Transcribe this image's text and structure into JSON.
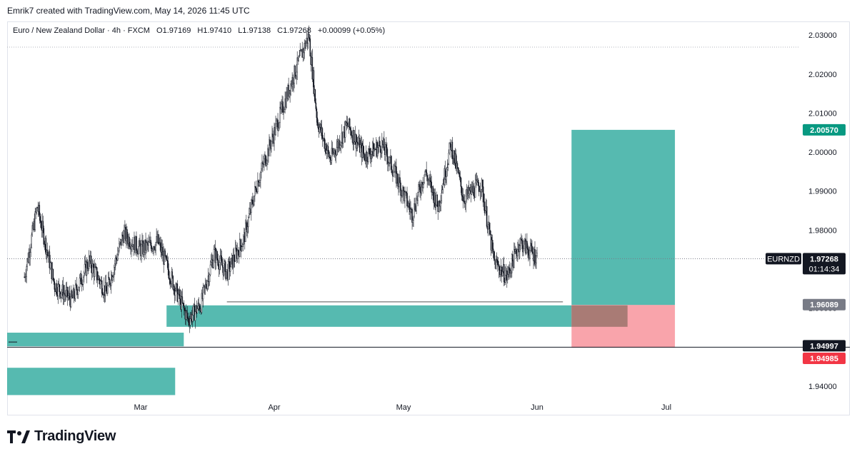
{
  "header": {
    "credit": "Emrik7 created with TradingView.com, May 14, 2026 11:45 UTC"
  },
  "symbol_bar": {
    "name": "Euro / New Zealand Dollar · 4h · FXCM",
    "open": "O1.97169",
    "high": "H1.97410",
    "low": "L1.97138",
    "close": "C1.97268",
    "change": "+0.00099 (+0.05%)"
  },
  "footer": {
    "brand": "TradingView"
  },
  "colors": {
    "teal_zone": "#26a69a",
    "profit_zone": "#26a69a",
    "loss_zone": "#f23645",
    "candle": "#131722",
    "tp_label_bg": "#089981",
    "sl_label_bg": "#f23645",
    "last_label_bg": "#131722",
    "gray_label_bg": "#787b86"
  },
  "chart_data": {
    "type": "candlestick",
    "symbol": "EURNZD",
    "timeframe": "4h",
    "x_axis_labels": [
      "Mar",
      "Apr",
      "May",
      "Jun",
      "Jul"
    ],
    "y_axis_ticks": [
      "1.94000",
      "1.95000",
      "1.96000",
      "1.97000",
      "1.98000",
      "1.99000",
      "2.00000",
      "2.01000",
      "2.02000",
      "2.03000"
    ],
    "ylim": [
      1.9365,
      2.0335
    ],
    "price_path": [
      [
        "2026-02-02",
        1.968
      ],
      [
        "2026-02-05",
        1.986
      ],
      [
        "2026-02-09",
        1.966
      ],
      [
        "2026-02-13",
        1.962
      ],
      [
        "2026-02-17",
        1.972
      ],
      [
        "2026-02-21",
        1.964
      ],
      [
        "2026-02-25",
        1.979
      ],
      [
        "2026-03-01",
        1.975
      ],
      [
        "2026-03-05",
        1.977
      ],
      [
        "2026-03-09",
        1.965
      ],
      [
        "2026-03-12",
        1.957
      ],
      [
        "2026-03-15",
        1.961
      ],
      [
        "2026-03-18",
        1.974
      ],
      [
        "2026-03-21",
        1.969
      ],
      [
        "2026-03-25",
        1.978
      ],
      [
        "2026-03-28",
        1.992
      ],
      [
        "2026-04-01",
        2.005
      ],
      [
        "2026-04-05",
        2.018
      ],
      [
        "2026-04-09",
        2.03
      ],
      [
        "2026-04-11",
        2.008
      ],
      [
        "2026-04-14",
        1.998
      ],
      [
        "2026-04-18",
        2.007
      ],
      [
        "2026-04-22",
        1.999
      ],
      [
        "2026-04-26",
        2.002
      ],
      [
        "2026-04-30",
        1.992
      ],
      [
        "2026-05-03",
        1.984
      ],
      [
        "2026-05-06",
        1.995
      ],
      [
        "2026-05-09",
        1.986
      ],
      [
        "2026-05-12",
        2.002
      ],
      [
        "2026-05-15",
        1.988
      ],
      [
        "2026-05-19",
        1.992
      ],
      [
        "2026-05-22",
        1.972
      ],
      [
        "2026-05-25",
        1.968
      ],
      [
        "2026-05-28",
        1.977
      ],
      [
        "2026-06-01",
        1.973
      ]
    ],
    "zones": [
      {
        "kind": "demand",
        "x0": "2026-01-25",
        "x1": "2026-03-11",
        "y0": 1.9502,
        "y1": 1.9537
      },
      {
        "kind": "demand",
        "x0": "2026-03-07",
        "x1": "2026-06-09",
        "y0": 1.9552,
        "y1": 1.9607
      },
      {
        "kind": "demand",
        "x0": "2026-01-25",
        "x1": "2026-03-09",
        "y0": 1.9377,
        "y1": 1.9447
      }
    ],
    "position": {
      "x0": "2026-06-09",
      "x1": "2026-07-03",
      "entry": 1.9608,
      "target": 2.0057,
      "stop": 1.94985,
      "overlap_until": "2026-06-22"
    },
    "lines": [
      {
        "kind": "liquidity",
        "x0": "2026-03-21",
        "x1": "2026-06-07",
        "y": 1.9616
      },
      {
        "kind": "level",
        "x0": "2026-01-25",
        "x1": "2026-09-30",
        "y": 1.94997
      }
    ],
    "price_labels": [
      {
        "text": "2.00570",
        "value": 2.0057,
        "style": "tp"
      },
      {
        "text": "EURNZD",
        "value": 1.97268,
        "style": "last"
      },
      {
        "text": "1.97268",
        "sub": "01:14:34",
        "value": 1.97268,
        "style": "last"
      },
      {
        "text": "1.96089",
        "value": 1.96089,
        "style": "gray"
      },
      {
        "text": "1.94997",
        "value": 1.94997,
        "style": "last"
      },
      {
        "text": "1.94985",
        "value": 1.94985,
        "style": "sl"
      }
    ]
  }
}
